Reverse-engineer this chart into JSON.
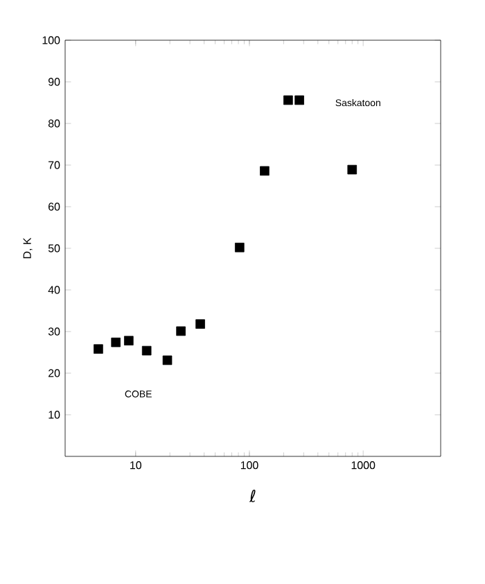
{
  "chart_data": {
    "type": "scatter",
    "xlabel": "ℓ",
    "ylabel": "D, K",
    "log": "x",
    "marker": "square",
    "grid": false,
    "x": [
      4.7,
      6.7,
      8.7,
      12.5,
      19,
      25,
      37,
      82,
      136,
      219,
      275,
      800
    ],
    "series": [
      {
        "color": "#000000",
        "values": [
          25.8,
          27.4,
          27.8,
          25.4,
          23.1,
          30.1,
          31.8,
          50.2,
          68.6,
          85.6,
          85.6,
          68.9
        ]
      }
    ],
    "xlim": [
      2.4,
      4800
    ],
    "xticks": [
      10,
      100,
      1000
    ],
    "ylim": [
      0,
      100
    ],
    "yticks": [
      10,
      20,
      30,
      40,
      50,
      60,
      70,
      80,
      90,
      100
    ],
    "annotations": [
      "COBE",
      "Saskatoon"
    ]
  }
}
